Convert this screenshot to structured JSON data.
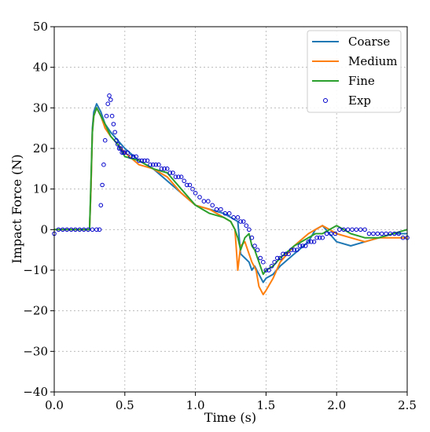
{
  "chart_data": {
    "type": "line",
    "xlabel": "Time (s)",
    "ylabel": "Impact Force (N)",
    "xlim": [
      0,
      2.5
    ],
    "ylim": [
      -40,
      50
    ],
    "xticks": [
      0.0,
      0.5,
      1.0,
      1.5,
      2.0,
      2.5
    ],
    "xtick_labels": [
      "0.0",
      "0.5",
      "1.0",
      "1.5",
      "2.0",
      "2.5"
    ],
    "yticks": [
      -40,
      -30,
      -20,
      -10,
      0,
      10,
      20,
      30,
      40,
      50
    ],
    "ytick_labels": [
      "−40",
      "−30",
      "−20",
      "−10",
      "0",
      "10",
      "20",
      "30",
      "40",
      "50"
    ],
    "grid": true,
    "legend": "top-right",
    "series": [
      {
        "name": "Coarse",
        "style": "line",
        "color": "#1f77b4",
        "x": [
          0.0,
          0.05,
          0.1,
          0.15,
          0.2,
          0.25,
          0.26,
          0.27,
          0.28,
          0.3,
          0.33,
          0.36,
          0.4,
          0.45,
          0.5,
          0.6,
          0.7,
          0.8,
          0.9,
          1.0,
          1.1,
          1.2,
          1.25,
          1.3,
          1.32,
          1.35,
          1.38,
          1.4,
          1.42,
          1.45,
          1.48,
          1.5,
          1.55,
          1.6,
          1.7,
          1.8,
          1.85,
          1.9,
          1.95,
          2.0,
          2.1,
          2.2,
          2.3,
          2.4,
          2.5
        ],
        "y": [
          0,
          0,
          0,
          0,
          0,
          0,
          10,
          25,
          29,
          31,
          29,
          26,
          24,
          22,
          20,
          17,
          15,
          12,
          9,
          6,
          5,
          4,
          3,
          2,
          -6,
          -7,
          -8,
          -10,
          -9,
          -11,
          -13,
          -12,
          -11,
          -9,
          -6,
          -3,
          0,
          1,
          -1,
          -3,
          -4,
          -3,
          -2,
          -1,
          -1
        ]
      },
      {
        "name": "Medium",
        "style": "line",
        "color": "#ff7f0e",
        "x": [
          0.0,
          0.05,
          0.1,
          0.15,
          0.2,
          0.25,
          0.26,
          0.27,
          0.28,
          0.3,
          0.33,
          0.36,
          0.4,
          0.45,
          0.5,
          0.6,
          0.7,
          0.8,
          0.9,
          1.0,
          1.1,
          1.2,
          1.25,
          1.28,
          1.3,
          1.32,
          1.35,
          1.38,
          1.4,
          1.43,
          1.45,
          1.48,
          1.5,
          1.55,
          1.6,
          1.7,
          1.8,
          1.85,
          1.9,
          1.95,
          2.0,
          2.1,
          2.2,
          2.3,
          2.4,
          2.5
        ],
        "y": [
          0,
          0,
          0,
          0,
          0,
          0,
          10,
          24,
          28,
          30,
          28,
          25,
          23,
          21,
          19,
          16,
          15,
          13,
          9,
          6,
          5,
          3,
          2,
          0,
          -10,
          -4,
          -3,
          -6,
          -8,
          -10,
          -14,
          -16,
          -15,
          -12,
          -8,
          -4,
          -1,
          0,
          1,
          0,
          -1,
          -2,
          -3,
          -2,
          -2,
          -2
        ]
      },
      {
        "name": "Fine",
        "style": "line",
        "color": "#2ca02c",
        "x": [
          0.0,
          0.05,
          0.1,
          0.15,
          0.2,
          0.25,
          0.26,
          0.27,
          0.28,
          0.3,
          0.33,
          0.36,
          0.4,
          0.45,
          0.5,
          0.6,
          0.7,
          0.8,
          0.9,
          1.0,
          1.1,
          1.2,
          1.25,
          1.28,
          1.3,
          1.32,
          1.35,
          1.38,
          1.4,
          1.42,
          1.45,
          1.48,
          1.5,
          1.55,
          1.6,
          1.7,
          1.8,
          1.85,
          1.9,
          1.95,
          2.0,
          2.05,
          2.1,
          2.2,
          2.3,
          2.4,
          2.5
        ],
        "y": [
          0,
          0,
          0,
          0,
          0,
          0,
          12,
          24,
          28,
          30,
          28,
          26,
          23,
          21,
          18,
          17,
          15,
          14,
          10,
          6,
          4,
          3,
          2,
          0,
          -2,
          -5,
          -2,
          -1,
          -4,
          -5,
          -8,
          -11,
          -10,
          -9,
          -7,
          -4,
          -2,
          -1,
          -1,
          0,
          1,
          0,
          -1,
          -2,
          -2,
          -1,
          0
        ]
      },
      {
        "name": "Exp",
        "style": "markers",
        "color": "#0000cc",
        "x": [
          0.0,
          0.03,
          0.06,
          0.09,
          0.12,
          0.15,
          0.18,
          0.21,
          0.24,
          0.27,
          0.3,
          0.32,
          0.33,
          0.34,
          0.35,
          0.36,
          0.37,
          0.38,
          0.39,
          0.4,
          0.41,
          0.42,
          0.43,
          0.44,
          0.45,
          0.46,
          0.47,
          0.48,
          0.49,
          0.5,
          0.52,
          0.54,
          0.56,
          0.58,
          0.6,
          0.62,
          0.64,
          0.66,
          0.68,
          0.7,
          0.72,
          0.74,
          0.76,
          0.78,
          0.8,
          0.82,
          0.84,
          0.86,
          0.88,
          0.9,
          0.92,
          0.94,
          0.96,
          0.98,
          1.0,
          1.03,
          1.06,
          1.09,
          1.12,
          1.15,
          1.18,
          1.21,
          1.24,
          1.27,
          1.3,
          1.32,
          1.34,
          1.36,
          1.38,
          1.4,
          1.42,
          1.44,
          1.46,
          1.48,
          1.5,
          1.52,
          1.54,
          1.56,
          1.58,
          1.6,
          1.62,
          1.64,
          1.66,
          1.68,
          1.7,
          1.72,
          1.74,
          1.76,
          1.78,
          1.8,
          1.82,
          1.84,
          1.86,
          1.88,
          1.9,
          1.93,
          1.96,
          1.99,
          2.02,
          2.05,
          2.08,
          2.11,
          2.14,
          2.17,
          2.2,
          2.23,
          2.26,
          2.29,
          2.32,
          2.35,
          2.38,
          2.41,
          2.44,
          2.47,
          2.5
        ],
        "y": [
          -1,
          0,
          0,
          0,
          0,
          0,
          0,
          0,
          0,
          0,
          0,
          0,
          6,
          11,
          16,
          22,
          28,
          31,
          33,
          32,
          28,
          26,
          24,
          22,
          21,
          20,
          20,
          19,
          19,
          19,
          19,
          18,
          18,
          18,
          17,
          17,
          17,
          17,
          16,
          16,
          16,
          16,
          15,
          15,
          15,
          14,
          14,
          13,
          13,
          13,
          12,
          11,
          11,
          10,
          9,
          8,
          7,
          7,
          6,
          5,
          5,
          4,
          4,
          3,
          3,
          2,
          2,
          1,
          0,
          -2,
          -4,
          -5,
          -7,
          -8,
          -10,
          -10,
          -9,
          -8,
          -7,
          -7,
          -6,
          -6,
          -6,
          -5,
          -5,
          -5,
          -4,
          -4,
          -4,
          -3,
          -3,
          -3,
          -2,
          -2,
          -2,
          -1,
          -1,
          -1,
          0,
          0,
          0,
          0,
          0,
          0,
          0,
          -1,
          -1,
          -1,
          -1,
          -1,
          -1,
          -1,
          -1,
          -2,
          -2
        ]
      }
    ]
  }
}
